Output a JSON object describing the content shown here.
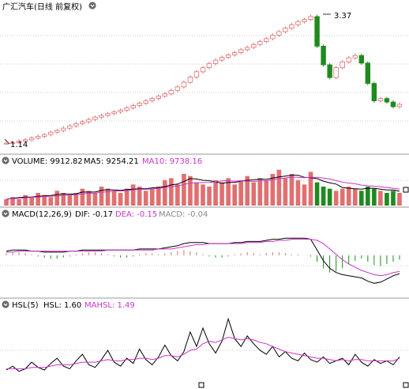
{
  "colors": {
    "up": "#e07070",
    "down": "#1f8a1f",
    "ma_black": "#000000",
    "ma_magenta": "#cc33cc",
    "grid": "#9a9a9a",
    "divider": "#999999",
    "bg": "#ffffff"
  },
  "header": {
    "title": "广汇汽车(日线 前复权)",
    "icon": "circle-chevron-down-icon"
  },
  "annotations": {
    "high": "3.37",
    "low": "1.14"
  },
  "volume_panel": {
    "name": "VOLUME",
    "value_label": "VOLUME: 9912.82",
    "ma5_label": "MA5: 9254.21",
    "ma10_label": "MA10: 9738.16",
    "icon": "circle-chevron-down-icon"
  },
  "macd_panel": {
    "name": "MACD(12,26,9)",
    "dif_label": "DIF: -0.17",
    "dea_label": "DEA: -0.15",
    "macd_label": "MACD: -0.04",
    "icon": "circle-chevron-down-icon"
  },
  "hsl_panel": {
    "name": "HSL(5)",
    "hsl_label": "HSL: 1.60",
    "mahsl_label": "MAHSL: 1.49",
    "icon": "circle-chevron-down-icon"
  },
  "chart_data": [
    {
      "type": "candlestick",
      "title": "广汇汽车(日线 前复权)",
      "note": "daily candles; price rises from 1.14 to a peak of 3.37, then drops",
      "price_high": 3.37,
      "price_low": 1.14,
      "close": [
        1.15,
        1.16,
        1.19,
        1.21,
        1.24,
        1.27,
        1.3,
        1.34,
        1.37,
        1.41,
        1.45,
        1.49,
        1.52,
        1.56,
        1.6,
        1.63,
        1.66,
        1.69,
        1.72,
        1.76,
        1.8,
        1.84,
        1.88,
        1.92,
        1.96,
        2.0,
        2.06,
        2.12,
        2.2,
        2.29,
        2.38,
        2.45,
        2.52,
        2.58,
        2.63,
        2.67,
        2.71,
        2.76,
        2.8,
        2.85,
        2.9,
        2.95,
        3.01,
        3.07,
        3.13,
        3.19,
        3.24,
        3.28,
        3.33,
        2.82,
        2.5,
        2.28,
        2.45,
        2.55,
        2.62,
        2.66,
        2.53,
        2.18,
        1.88,
        1.92,
        1.86,
        1.78,
        1.82
      ]
    },
    {
      "type": "bar",
      "title": "VOLUME",
      "series": [
        {
          "name": "VOLUME",
          "values": [
            3,
            4,
            3,
            5,
            4,
            6,
            5,
            4,
            7,
            6,
            5,
            6,
            8,
            7,
            6,
            9,
            8,
            7,
            6,
            8,
            10,
            9,
            7,
            8,
            9,
            12,
            13,
            10,
            15,
            14,
            11,
            10,
            9,
            12,
            11,
            13,
            10,
            12,
            14,
            11,
            13,
            12,
            15,
            17,
            13,
            15,
            12,
            10,
            16,
            11,
            9,
            8,
            7,
            8,
            9,
            8,
            7,
            9,
            8,
            7,
            6,
            7,
            6
          ]
        },
        {
          "name": "MA5",
          "values": [
            3,
            3.5,
            3.8,
            4,
            4,
            4.4,
            4.6,
            4.8,
            5.2,
            5.6,
            5.4,
            5.6,
            6.4,
            6.4,
            6.4,
            7.2,
            7.6,
            7.4,
            7.2,
            7.6,
            7.8,
            8,
            8,
            8.4,
            8.6,
            9,
            9.8,
            10.2,
            11.4,
            12.8,
            12.6,
            12,
            11.8,
            11.2,
            10.6,
            11,
            11,
            11.6,
            12,
            12.2,
            12.6,
            12.4,
            13,
            13.6,
            14,
            14.4,
            14.4,
            13.4,
            13.2,
            12.8,
            11.6,
            10.8,
            10.2,
            8.6,
            8.2,
            8,
            7.8,
            8.2,
            8.2,
            7.8,
            7.4,
            7.4,
            6.8
          ]
        },
        {
          "name": "MA10",
          "values": [
            3,
            3.3,
            3.5,
            3.7,
            3.9,
            4.1,
            4.3,
            4.4,
            4.6,
            4.8,
            5,
            5.2,
            5.6,
            5.8,
            5.9,
            6.3,
            6.6,
            6.9,
            6.9,
            7.1,
            7.5,
            7.7,
            7.7,
            7.9,
            8.2,
            8.5,
            9,
            9.3,
            10,
            10.7,
            10.8,
            10.9,
            11,
            11.3,
            11.7,
            11.8,
            11.5,
            11.7,
            11.6,
            11.4,
            11.8,
            11.7,
            12.3,
            12.8,
            13.1,
            13.5,
            13.4,
            13.2,
            13.4,
            13.4,
            13,
            12.6,
            11.8,
            11.1,
            10.7,
            10.3,
            9.7,
            9.4,
            9.2,
            8.9,
            8.6,
            8.2,
            7.8
          ]
        }
      ],
      "values_note": "relative volume levels read from bar heights"
    },
    {
      "type": "bar",
      "title": "MACD(12,26,9)",
      "series": [
        {
          "name": "MACD",
          "values": [
            0.02,
            0.03,
            0.03,
            0.02,
            0.01,
            -0.01,
            -0.02,
            -0.03,
            -0.03,
            -0.02,
            -0.01,
            0.01,
            0.02,
            0.03,
            0.03,
            0.02,
            0.01,
            -0.01,
            -0.02,
            -0.02,
            -0.01,
            0.01,
            0.02,
            0.02,
            0.01,
            0.02,
            0.03,
            0.04,
            0.05,
            0.04,
            0.03,
            0.01,
            -0.01,
            -0.02,
            -0.02,
            -0.01,
            0.01,
            0.02,
            0.03,
            0.02,
            0.01,
            0.02,
            0.03,
            0.03,
            0.02,
            0.01,
            0.01,
            0.0,
            -0.01,
            -0.06,
            -0.12,
            -0.16,
            -0.15,
            -0.12,
            -0.08,
            -0.05,
            -0.03,
            -0.06,
            -0.09,
            -0.1,
            -0.08,
            -0.06,
            -0.04
          ]
        },
        {
          "name": "DIF",
          "values": [
            0.04,
            0.05,
            0.05,
            0.05,
            0.04,
            0.04,
            0.03,
            0.03,
            0.03,
            0.03,
            0.04,
            0.04,
            0.05,
            0.05,
            0.05,
            0.05,
            0.05,
            0.05,
            0.05,
            0.05,
            0.05,
            0.06,
            0.06,
            0.06,
            0.06,
            0.07,
            0.08,
            0.09,
            0.11,
            0.12,
            0.12,
            0.12,
            0.11,
            0.11,
            0.11,
            0.11,
            0.12,
            0.12,
            0.13,
            0.13,
            0.13,
            0.14,
            0.15,
            0.15,
            0.16,
            0.16,
            0.16,
            0.16,
            0.15,
            0.05,
            -0.05,
            -0.12,
            -0.16,
            -0.18,
            -0.19,
            -0.2,
            -0.21,
            -0.24,
            -0.26,
            -0.25,
            -0.22,
            -0.19,
            -0.17
          ]
        },
        {
          "name": "DEA",
          "values": [
            0.03,
            0.03,
            0.04,
            0.04,
            0.04,
            0.04,
            0.04,
            0.04,
            0.04,
            0.04,
            0.04,
            0.04,
            0.04,
            0.04,
            0.04,
            0.04,
            0.05,
            0.05,
            0.05,
            0.05,
            0.05,
            0.05,
            0.05,
            0.05,
            0.06,
            0.06,
            0.06,
            0.07,
            0.08,
            0.09,
            0.1,
            0.1,
            0.11,
            0.11,
            0.11,
            0.11,
            0.11,
            0.11,
            0.12,
            0.12,
            0.12,
            0.13,
            0.13,
            0.14,
            0.14,
            0.15,
            0.15,
            0.15,
            0.15,
            0.14,
            0.11,
            0.06,
            0.01,
            -0.04,
            -0.08,
            -0.11,
            -0.14,
            -0.16,
            -0.18,
            -0.19,
            -0.18,
            -0.16,
            -0.15
          ]
        }
      ]
    },
    {
      "type": "line",
      "title": "HSL(5)",
      "series": [
        {
          "name": "HSL",
          "values": [
            0.6,
            0.9,
            0.5,
            0.7,
            1.2,
            0.8,
            0.6,
            1.1,
            1.5,
            0.9,
            0.7,
            1.3,
            1.8,
            1.0,
            0.8,
            1.4,
            2.1,
            1.2,
            0.9,
            1.5,
            1.1,
            2.2,
            1.4,
            1.0,
            1.6,
            2.5,
            1.7,
            1.3,
            2.0,
            3.5,
            2.4,
            3.8,
            2.6,
            1.9,
            2.8,
            4.5,
            3.0,
            2.4,
            3.2,
            2.6,
            2.1,
            1.8,
            2.4,
            1.6,
            2.0,
            1.5,
            1.3,
            1.9,
            1.4,
            1.2,
            1.6,
            1.1,
            1.3,
            1.5,
            1.0,
            1.8,
            1.2,
            0.9,
            1.4,
            1.1,
            1.3,
            1.0,
            1.6
          ]
        },
        {
          "name": "MAHSL",
          "values": [
            0.7,
            0.7,
            0.7,
            0.7,
            0.8,
            0.8,
            0.8,
            0.9,
            1.0,
            1.0,
            1.0,
            1.1,
            1.2,
            1.2,
            1.2,
            1.3,
            1.4,
            1.3,
            1.3,
            1.4,
            1.4,
            1.5,
            1.5,
            1.4,
            1.5,
            1.7,
            1.7,
            1.6,
            1.8,
            2.1,
            2.2,
            2.6,
            2.8,
            2.7,
            2.9,
            3.1,
            3.0,
            2.9,
            3.0,
            2.9,
            2.7,
            2.6,
            2.4,
            2.2,
            2.0,
            1.9,
            1.8,
            1.7,
            1.6,
            1.5,
            1.5,
            1.4,
            1.3,
            1.4,
            1.3,
            1.4,
            1.4,
            1.3,
            1.3,
            1.3,
            1.3,
            1.3,
            1.49
          ]
        }
      ]
    }
  ]
}
